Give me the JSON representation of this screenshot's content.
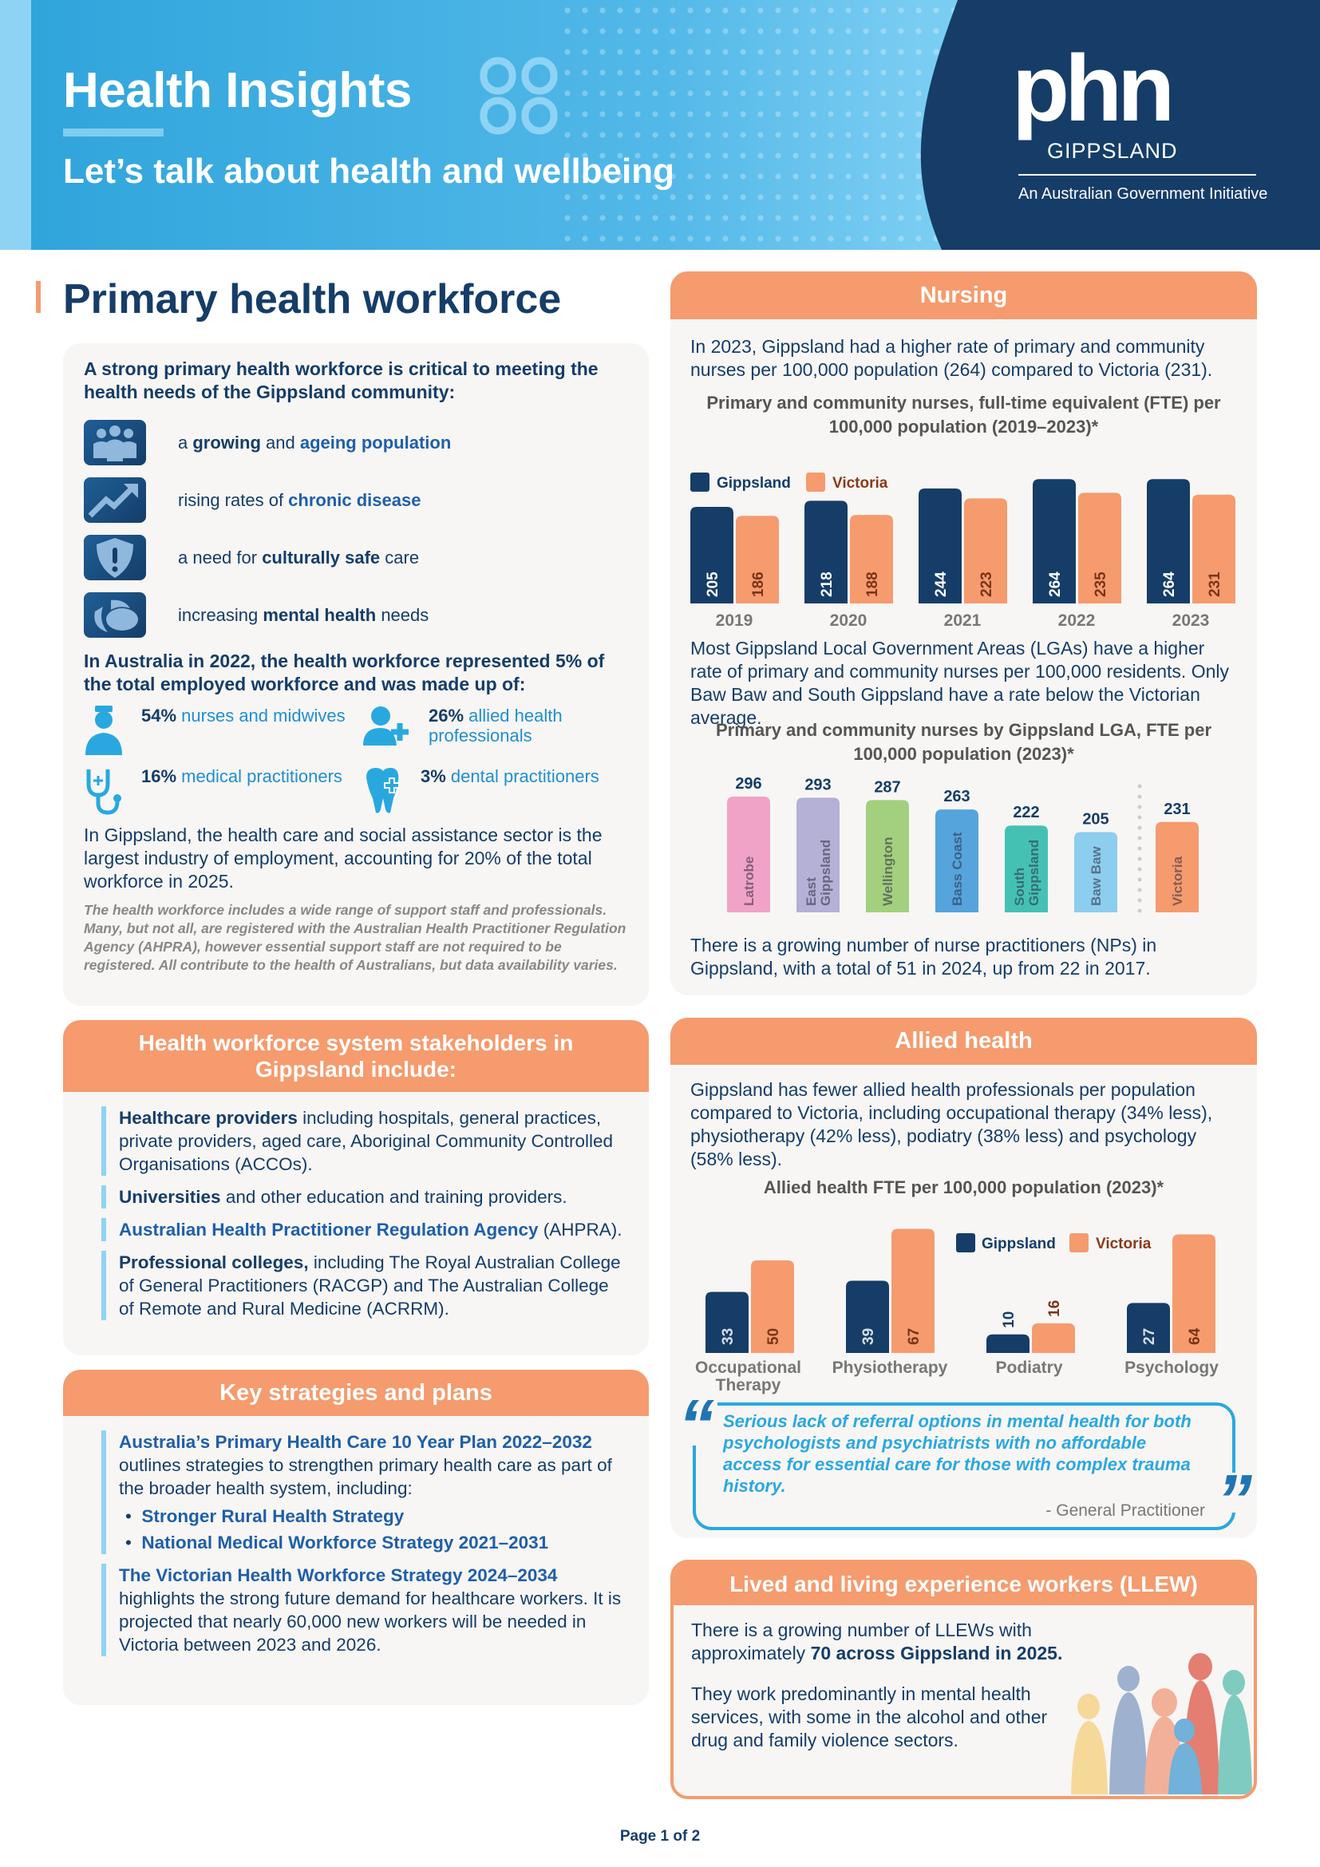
{
  "header": {
    "title": "Health Insights",
    "subtitle": "Let’s talk about health and wellbeing",
    "logo_main": "phn",
    "logo_region": "GIPPSLAND",
    "logo_tagline": "An Australian Government Initiative"
  },
  "colors": {
    "navy": "#153d68",
    "orange": "#f59b6e",
    "blue": "#29a8e0",
    "card": "#f7f6f4"
  },
  "workforce": {
    "title": "Primary health workforce",
    "intro": "A strong primary health workforce is critical to meeting the health needs of the Gippsland community:",
    "needs": [
      {
        "icon": "people-group-icon",
        "segs": [
          {
            "t": "a ",
            "s": ""
          },
          {
            "t": "growing",
            "s": "b"
          },
          {
            "t": " and ",
            "s": ""
          },
          {
            "t": "ageing population",
            "s": "bb"
          }
        ]
      },
      {
        "icon": "trend-up-icon",
        "segs": [
          {
            "t": "rising rates of ",
            "s": ""
          },
          {
            "t": "chronic disease",
            "s": "bb"
          }
        ]
      },
      {
        "icon": "shield-alert-icon",
        "segs": [
          {
            "t": "a need for ",
            "s": ""
          },
          {
            "t": "culturally safe",
            "s": "b"
          },
          {
            "t": " care",
            "s": ""
          }
        ]
      },
      {
        "icon": "leaves-icon",
        "segs": [
          {
            "t": "increasing ",
            "s": ""
          },
          {
            "t": "mental health",
            "s": "b"
          },
          {
            "t": " needs",
            "s": ""
          }
        ]
      }
    ],
    "australia_text": "In Australia in 2022, the health workforce represented 5% of the total employed workforce and was made up of:",
    "stats": [
      {
        "icon": "nurse-icon",
        "pct": "54%",
        "label": "nurses and midwives"
      },
      {
        "icon": "person-plus-icon",
        "pct": "26%",
        "label": "allied health professionals"
      },
      {
        "icon": "stethoscope-icon",
        "pct": "16%",
        "label": "medical practitioners"
      },
      {
        "icon": "tooth-icon",
        "pct": "3%",
        "label": "dental practitioners"
      }
    ],
    "gippsland_text": "In Gippsland, the health care and social assistance sector is the largest industry of employment, accounting for 20% of the total workforce in 2025.",
    "note": "The health workforce includes a wide range of support staff and professionals. Many, but not all, are registered with the Australian Health Practitioner Regulation Agency (AHPRA), however essential support staff are not required to be registered. All contribute to the health of Australians, but data availability varies."
  },
  "stakeholders": {
    "title": "Health workforce system stakeholders in Gippsland include:",
    "items": [
      [
        {
          "t": "Healthcare providers",
          "s": "b"
        },
        {
          "t": " including hospitals, general practices, private providers, aged care, Aboriginal Community Controlled Organisations (ACCOs).",
          "s": ""
        }
      ],
      [
        {
          "t": "Universities",
          "s": "b"
        },
        {
          "t": " and other education and training providers.",
          "s": ""
        }
      ],
      [
        {
          "t": "Australian Health Practitioner Regulation Agency",
          "s": "bb"
        },
        {
          "t": " (AHPRA).",
          "s": ""
        }
      ],
      [
        {
          "t": "Professional colleges,",
          "s": "b"
        },
        {
          "t": " including The Royal Australian College of General Practitioners (RACGP) and The Australian College of Remote and Rural Medicine (ACRRM).",
          "s": ""
        }
      ]
    ]
  },
  "strategies": {
    "title": "Key strategies and plans",
    "plan1_title": "Australia’s Primary Health Care 10 Year Plan 2022–2032",
    "plan1_text": "outlines strategies to strengthen primary health care as part of the broader health system, including:",
    "plan1_bullets": [
      "Stronger Rural Health Strategy",
      "National Medical Workforce Strategy 2021–2031"
    ],
    "plan2_title": "The Victorian Health Workforce Strategy 2024–2034",
    "plan2_text": "highlights the strong future demand for healthcare workers. It is projected that nearly 60,000 new workers will be needed in Victoria between 2023 and 2026."
  },
  "nursing": {
    "title": "Nursing",
    "intro": "In 2023, Gippsland had a higher rate of primary and community nurses per 100,000 population (264) compared to Victoria (231).",
    "lga_text": "Most Gippsland Local Government Areas (LGAs) have a higher rate of primary and community nurses per 100,000 residents. Only Baw Baw and South Gippsland have a rate below the Victorian average.",
    "np_text": "There is a growing number of nurse practitioners (NPs) in Gippsland, with a total of 51 in 2024, up from 22 in 2017."
  },
  "allied": {
    "title": "Allied health",
    "intro": "Gippsland has fewer allied health professionals per population compared to Victoria, including occupational therapy (34% less), physiotherapy (42% less), podiatry (38% less) and psychology (58% less).",
    "quote": "Serious lack of referral options in mental health for both psychologists and psychiatrists with no affordable access for essential care for those with complex trauma history.",
    "quote_author": "- General Practitioner"
  },
  "llew": {
    "title": "Lived and living experience workers (LLEW)",
    "text1": [
      {
        "t": "There is a growing number of LLEWs with approximately ",
        "s": ""
      },
      {
        "t": "70 across Gippsland in 2025.",
        "s": "b"
      }
    ],
    "text2": "They work predominantly in mental health services, with some in the alcohol and other drug and family violence sectors."
  },
  "footer": {
    "page": "Page 1 of 2"
  },
  "chart_data": [
    {
      "type": "bar",
      "title": "Primary and community nurses, full-time equivalent (FTE) per 100,000 population (2019–2023)*",
      "categories": [
        "2019",
        "2020",
        "2021",
        "2022",
        "2023"
      ],
      "series": [
        {
          "name": "Gippsland",
          "values": [
            205,
            218,
            244,
            264,
            264
          ]
        },
        {
          "name": "Victoria",
          "values": [
            186,
            188,
            223,
            235,
            231
          ]
        }
      ],
      "legend": "top-left"
    },
    {
      "type": "bar",
      "title": "Primary and community nurses by Gippsland LGA, FTE per 100,000 population (2023)*",
      "categories": [
        "Latrobe",
        "East Gippsland",
        "Wellington",
        "Bass Coast",
        "South Gippsland",
        "Baw Baw",
        "Victoria"
      ],
      "values": [
        296,
        293,
        287,
        263,
        222,
        205,
        231
      ],
      "colors": [
        "#f0a3c6",
        "#b5b0d6",
        "#a3d07f",
        "#55a4dc",
        "#45c1b4",
        "#8dcdee",
        "#f59b6e"
      ]
    },
    {
      "type": "bar",
      "title": "Allied health FTE per 100,000 population (2023)*",
      "categories": [
        "Occupational Therapy",
        "Physiotherapy",
        "Podiatry",
        "Psychology"
      ],
      "series": [
        {
          "name": "Gippsland",
          "values": [
            33,
            39,
            10,
            27
          ]
        },
        {
          "name": "Victoria",
          "values": [
            50,
            67,
            16,
            64
          ]
        }
      ],
      "legend": "top-right"
    }
  ]
}
